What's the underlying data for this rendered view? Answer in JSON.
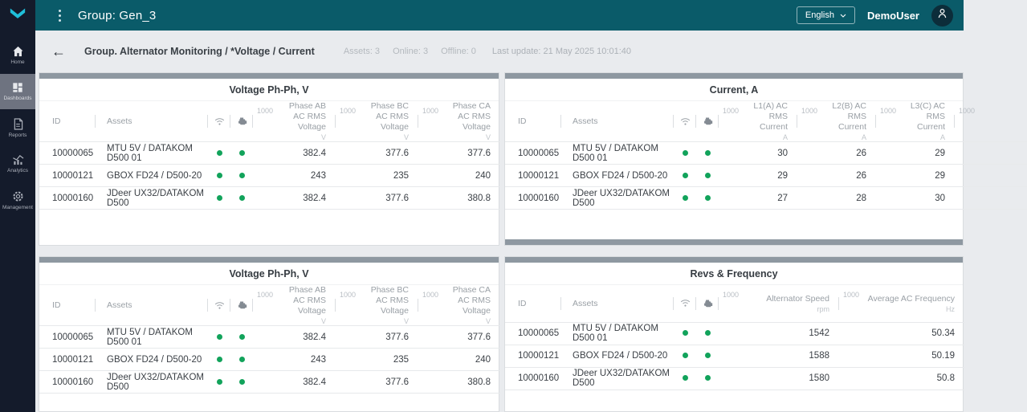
{
  "colors": {
    "header_teal": "#0a5b69",
    "sidebar_navy": "#141b2b",
    "accent_cyan": "#1fc0da",
    "status_green": "#12a35b",
    "scrollbar_gray": "#8e98a1"
  },
  "header": {
    "title": "Group: Gen_3",
    "language": "English",
    "user": "DemoUser"
  },
  "sidebar": {
    "items": [
      {
        "label": "Home",
        "icon": "home-icon",
        "active": false
      },
      {
        "label": "Dashboards",
        "icon": "dashboards-icon",
        "active": true
      },
      {
        "label": "Reports",
        "icon": "reports-icon",
        "active": false
      },
      {
        "label": "Analytics",
        "icon": "analytics-icon",
        "active": false
      },
      {
        "label": "Management",
        "icon": "management-icon",
        "active": false
      }
    ]
  },
  "toolbar": {
    "breadcrumb": "Group. Alternator Monitoring / *Voltage / Current",
    "assets": "Assets: 3",
    "online": "Online: 3",
    "offline": "Offline: 0",
    "last_update": "Last update: 21 May 2025 10:01:40"
  },
  "panels": [
    {
      "title": "Voltage Ph-Ph, V",
      "cut_right": false,
      "bottom_scrollbar": false,
      "columns": [
        {
          "type": "text",
          "key": "id",
          "label": "ID",
          "width": 70
        },
        {
          "type": "text",
          "key": "asset",
          "label": "Assets",
          "width": 140
        },
        {
          "type": "icon",
          "icon": "wifi",
          "width": 28
        },
        {
          "type": "icon",
          "icon": "engine",
          "width": 28
        },
        {
          "type": "value",
          "scale": "1000",
          "label": "Phase AB AC RMS Voltage",
          "unit": "V",
          "vi": 0,
          "width": 103
        },
        {
          "type": "value",
          "scale": "1000",
          "label": "Phase BC AC RMS Voltage",
          "unit": "V",
          "vi": 1,
          "width": 103
        },
        {
          "type": "value",
          "scale": "1000",
          "label": "Phase CA AC RMS Voltage",
          "unit": "V",
          "vi": 2,
          "width": 102
        }
      ],
      "rows": [
        {
          "id": "10000065",
          "asset": "MTU 5V / DATAKOM D500 01",
          "statuses": [
            true,
            true
          ],
          "values": [
            "382.4",
            "377.6",
            "377.6"
          ]
        },
        {
          "id": "10000121",
          "asset": "GBOX FD24 / D500-20",
          "statuses": [
            true,
            true
          ],
          "values": [
            "243",
            "235",
            "240"
          ]
        },
        {
          "id": "10000160",
          "asset": "JDeer UX32/DATAKOM D500",
          "statuses": [
            true,
            true
          ],
          "values": [
            "382.4",
            "377.6",
            "380.8"
          ]
        }
      ]
    },
    {
      "title": "Current, A",
      "cut_right": true,
      "bottom_scrollbar": true,
      "columns": [
        {
          "type": "text",
          "key": "id",
          "label": "ID",
          "width": 70
        },
        {
          "type": "text",
          "key": "asset",
          "label": "Assets",
          "width": 140
        },
        {
          "type": "icon",
          "icon": "wifi",
          "width": 28
        },
        {
          "type": "icon",
          "icon": "engine",
          "width": 28
        },
        {
          "type": "value",
          "scale": "1000",
          "label": "L1(A) AC RMS Current",
          "unit": "A",
          "vi": 0,
          "width": 98
        },
        {
          "type": "value",
          "scale": "1000",
          "label": "L2(B) AC RMS Current",
          "unit": "A",
          "vi": 1,
          "width": 98
        },
        {
          "type": "value",
          "scale": "1000",
          "label": "L3(C) AC RMS Current",
          "unit": "A",
          "vi": 2,
          "width": 98
        },
        {
          "type": "value",
          "scale": "1000",
          "label": "",
          "unit": "",
          "vi": 3,
          "width": 90
        }
      ],
      "rows": [
        {
          "id": "10000065",
          "asset": "MTU 5V / DATAKOM D500 01",
          "statuses": [
            true,
            true
          ],
          "values": [
            "30",
            "26",
            "29",
            ""
          ]
        },
        {
          "id": "10000121",
          "asset": "GBOX FD24 / D500-20",
          "statuses": [
            true,
            true
          ],
          "values": [
            "29",
            "26",
            "29",
            ""
          ]
        },
        {
          "id": "10000160",
          "asset": "JDeer UX32/DATAKOM D500",
          "statuses": [
            true,
            true
          ],
          "values": [
            "27",
            "28",
            "30",
            ""
          ]
        }
      ]
    },
    {
      "title": "Voltage Ph-Ph, V",
      "cut_right": false,
      "bottom_scrollbar": false,
      "columns": [
        {
          "type": "text",
          "key": "id",
          "label": "ID",
          "width": 70
        },
        {
          "type": "text",
          "key": "asset",
          "label": "Assets",
          "width": 140
        },
        {
          "type": "icon",
          "icon": "wifi",
          "width": 28
        },
        {
          "type": "icon",
          "icon": "engine",
          "width": 28
        },
        {
          "type": "value",
          "scale": "1000",
          "label": "Phase AB AC RMS Voltage",
          "unit": "V",
          "vi": 0,
          "width": 103
        },
        {
          "type": "value",
          "scale": "1000",
          "label": "Phase BC AC RMS Voltage",
          "unit": "V",
          "vi": 1,
          "width": 103
        },
        {
          "type": "value",
          "scale": "1000",
          "label": "Phase CA AC RMS Voltage",
          "unit": "V",
          "vi": 2,
          "width": 102
        }
      ],
      "rows": [
        {
          "id": "10000065",
          "asset": "MTU 5V / DATAKOM D500 01",
          "statuses": [
            true,
            true
          ],
          "values": [
            "382.4",
            "377.6",
            "377.6"
          ]
        },
        {
          "id": "10000121",
          "asset": "GBOX FD24 / D500-20",
          "statuses": [
            true,
            true
          ],
          "values": [
            "243",
            "235",
            "240"
          ]
        },
        {
          "id": "10000160",
          "asset": "JDeer UX32/DATAKOM D500",
          "statuses": [
            true,
            true
          ],
          "values": [
            "382.4",
            "377.6",
            "380.8"
          ]
        }
      ]
    },
    {
      "title": "Revs & Frequency",
      "cut_right": false,
      "bottom_scrollbar": false,
      "columns": [
        {
          "type": "text",
          "key": "id",
          "label": "ID",
          "width": 70
        },
        {
          "type": "text",
          "key": "asset",
          "label": "Assets",
          "width": 140
        },
        {
          "type": "icon",
          "icon": "wifi",
          "width": 28
        },
        {
          "type": "icon",
          "icon": "engine",
          "width": 28
        },
        {
          "type": "value",
          "scale": "1000",
          "label": "Alternator Speed",
          "unit": "rpm",
          "vi": 0,
          "width": 150
        },
        {
          "type": "value",
          "scale": "1000",
          "label": "Average AC Frequency",
          "unit": "Hz",
          "vi": 1,
          "width": 156
        }
      ],
      "rows": [
        {
          "id": "10000065",
          "asset": "MTU 5V / DATAKOM D500 01",
          "statuses": [
            true,
            true
          ],
          "values": [
            "1542",
            "50.34"
          ]
        },
        {
          "id": "10000121",
          "asset": "GBOX FD24 / D500-20",
          "statuses": [
            true,
            true
          ],
          "values": [
            "1588",
            "50.19"
          ]
        },
        {
          "id": "10000160",
          "asset": "JDeer UX32/DATAKOM D500",
          "statuses": [
            true,
            true
          ],
          "values": [
            "1580",
            "50.8"
          ]
        }
      ]
    }
  ]
}
